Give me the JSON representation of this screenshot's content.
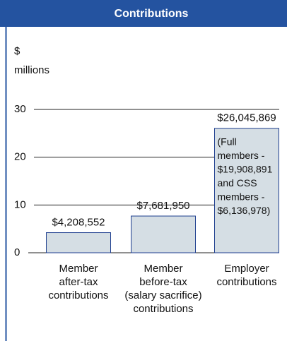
{
  "chart_data": {
    "type": "bar",
    "title": "Contributions",
    "y_label": [
      "$",
      "millions"
    ],
    "categories": [
      [
        "Member",
        "after-tax",
        "contributions"
      ],
      [
        "Member",
        "before-tax",
        "(salary sacrifice)",
        "contributions"
      ],
      [
        "Employer",
        "contributions"
      ]
    ],
    "values": [
      4.208552,
      7.68195,
      26.045869
    ],
    "value_labels": [
      "$4,208,552",
      "$7,681,950",
      "$26,045,869"
    ],
    "annotation": [
      "(Full",
      "members -",
      "$19,908,891",
      "and CSS",
      "members -",
      "$6,136,978)"
    ],
    "color": "#d5dee4",
    "edge_color": "#1f3f8f",
    "ylim": [
      0,
      30
    ],
    "yticks": [
      0,
      10,
      20,
      30
    ],
    "grid": true
  }
}
